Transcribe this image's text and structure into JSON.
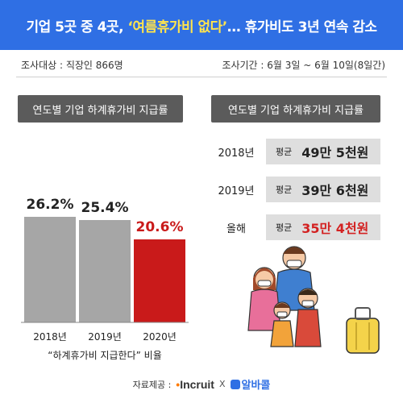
{
  "header": {
    "title_part1": "기업 5곳 중 4곳, ",
    "title_highlight": "‘여름휴가비 없다’",
    "title_part2": "… 휴가비도 3년 연속 감소"
  },
  "meta": {
    "subject": "조사대상 : 직장인 866명",
    "period": "조사기간 : 6월 3일 ~ 6월 10일(8일간)"
  },
  "left_panel": {
    "title": "연도별 기업 하계휴가비 지급률"
  },
  "right_panel": {
    "title": "연도별 기업 하계휴가비 지급률"
  },
  "chart_data": {
    "type": "bar",
    "title": "연도별 기업 하계휴가비 지급률",
    "categories": [
      "2018년",
      "2019년",
      "2020년"
    ],
    "values": [
      26.2,
      25.4,
      20.6
    ],
    "value_labels": [
      "26.2%",
      "25.4%",
      "20.6%"
    ],
    "xlabel": "“하계휴가비 지급한다” 비율",
    "ylabel": "",
    "colors": [
      "#a6a6a6",
      "#a6a6a6",
      "#c91a1a"
    ]
  },
  "averages": [
    {
      "year": "2018년",
      "label": "평균",
      "value": "49만 5천원",
      "highlight": false
    },
    {
      "year": "2019년",
      "label": "평균",
      "value": "39만 6천원",
      "highlight": false
    },
    {
      "year": "올해",
      "label": "평균",
      "value": "35만 4천원",
      "highlight": true
    }
  ],
  "source": {
    "label": "자료제공 :",
    "logo1": "Incruit",
    "separator": "X",
    "logo2": "알바콜"
  },
  "illustration": "family-with-masks-and-suitcase"
}
